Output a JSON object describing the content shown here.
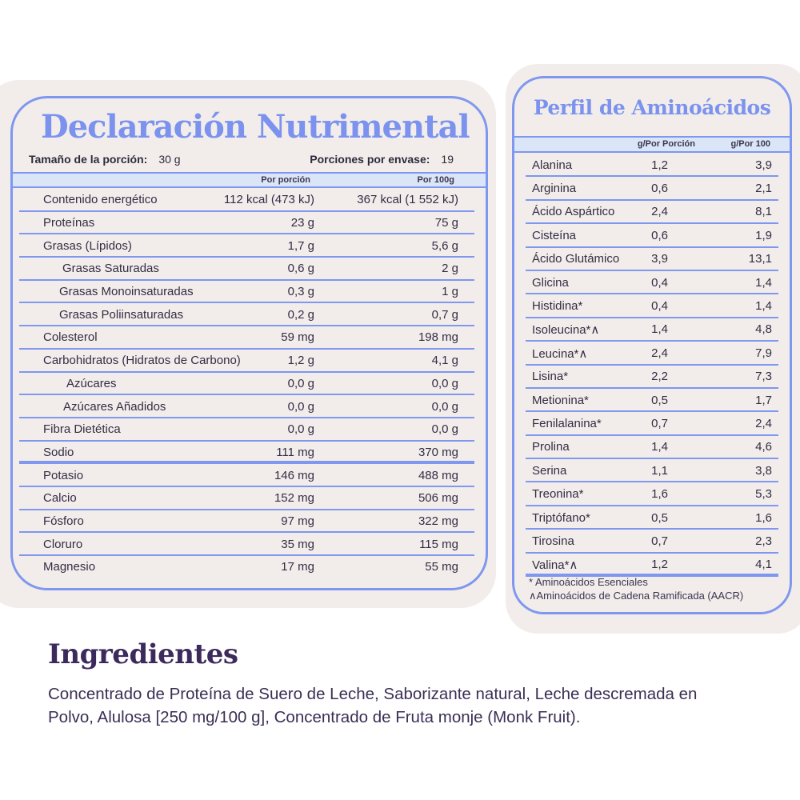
{
  "nutrition": {
    "title": "Declaración Nutrimental",
    "serving_label": "Tamaño de la porción:",
    "serving_value": "30 g",
    "servings_label": "Porciones por envase:",
    "servings_value": "19",
    "col1": "Por porción",
    "col2": "Por 100g",
    "rows": [
      {
        "name": "Contenido energético",
        "a": "112 kcal (473 kJ)",
        "b": "367 kcal (1 552 kJ)",
        "indent": 0
      },
      {
        "name": "Proteínas",
        "a": "23 g",
        "b": "75 g",
        "indent": 0
      },
      {
        "name": "Grasas (Lípidos)",
        "a": "1,7 g",
        "b": "5,6 g",
        "indent": 0
      },
      {
        "name": "Grasas Saturadas",
        "a": "0,6 g",
        "b": "2 g",
        "indent": 24
      },
      {
        "name": "Grasas Monoinsaturadas",
        "a": "0,3 g",
        "b": "1 g",
        "indent": 20
      },
      {
        "name": "Grasas Poliinsaturadas",
        "a": "0,2 g",
        "b": "0,7 g",
        "indent": 20
      },
      {
        "name": "Colesterol",
        "a": "59 mg",
        "b": "198 mg",
        "indent": 0
      },
      {
        "name": "Carbohidratos (Hidratos de Carbono)",
        "a": "1,2 g",
        "b": "4,1 g",
        "indent": 0
      },
      {
        "name": "Azúcares",
        "a": "0,0 g",
        "b": "0,0 g",
        "indent": 29
      },
      {
        "name": "Azúcares Añadidos",
        "a": "0,0 g",
        "b": "0,0 g",
        "indent": 25
      },
      {
        "name": "Fibra Dietética",
        "a": "0,0 g",
        "b": "0,0 g",
        "indent": 0
      },
      {
        "name": "Sodio",
        "a": "111 mg",
        "b": "370 mg",
        "indent": 0,
        "thick": true
      },
      {
        "name": "Potasio",
        "a": "146 mg",
        "b": "488 mg",
        "indent": 0
      },
      {
        "name": "Calcio",
        "a": "152 mg",
        "b": "506 mg",
        "indent": 0
      },
      {
        "name": "Fósforo",
        "a": "97 mg",
        "b": "322 mg",
        "indent": 0
      },
      {
        "name": "Cloruro",
        "a": "35 mg",
        "b": "115 mg",
        "indent": 0
      },
      {
        "name": "Magnesio",
        "a": "17 mg",
        "b": "55 mg",
        "indent": 0
      }
    ]
  },
  "amino": {
    "title": "Perfil de Aminoácidos",
    "col1": "g/Por Porción",
    "col2": "g/Por 100",
    "rows": [
      {
        "name": "Alanina",
        "a": "1,2",
        "b": "3,9"
      },
      {
        "name": "Arginina",
        "a": "0,6",
        "b": "2,1"
      },
      {
        "name": "Ácido Aspártico",
        "a": "2,4",
        "b": "8,1"
      },
      {
        "name": "Cisteína",
        "a": "0,6",
        "b": "1,9"
      },
      {
        "name": "Ácido Glutámico",
        "a": "3,9",
        "b": "13,1"
      },
      {
        "name": "Glicina",
        "a": "0,4",
        "b": "1,4"
      },
      {
        "name": "Histidina*",
        "a": "0,4",
        "b": "1,4"
      },
      {
        "name": "Isoleucina*∧",
        "a": "1,4",
        "b": "4,8"
      },
      {
        "name": "Leucina*∧",
        "a": "2,4",
        "b": "7,9"
      },
      {
        "name": "Lisina*",
        "a": "2,2",
        "b": "7,3"
      },
      {
        "name": "Metionina*",
        "a": "0,5",
        "b": "1,7"
      },
      {
        "name": "Fenilalanina*",
        "a": "0,7",
        "b": "2,4"
      },
      {
        "name": "Prolina",
        "a": "1,4",
        "b": "4,6"
      },
      {
        "name": "Serina",
        "a": "1,1",
        "b": "3,8"
      },
      {
        "name": "Treonina*",
        "a": "1,6",
        "b": "5,3"
      },
      {
        "name": "Triptófano*",
        "a": "0,5",
        "b": "1,6"
      },
      {
        "name": "Tirosina",
        "a": "0,7",
        "b": "2,3"
      },
      {
        "name": "Valina*∧",
        "a": "1,2",
        "b": "4,1",
        "thick": true
      }
    ],
    "footnotes": [
      "* Aminoácidos Esenciales",
      "∧Aminoácidos de Cadena Ramificada (AACR)"
    ]
  },
  "ingredients": {
    "title": "Ingredientes",
    "text": "Concentrado de Proteína de Suero de Leche, Saborizante natural, Leche descremada en Polvo, Alulosa [250 mg/100 g], Concentrado de Fruta monje (Monk Fruit)."
  }
}
